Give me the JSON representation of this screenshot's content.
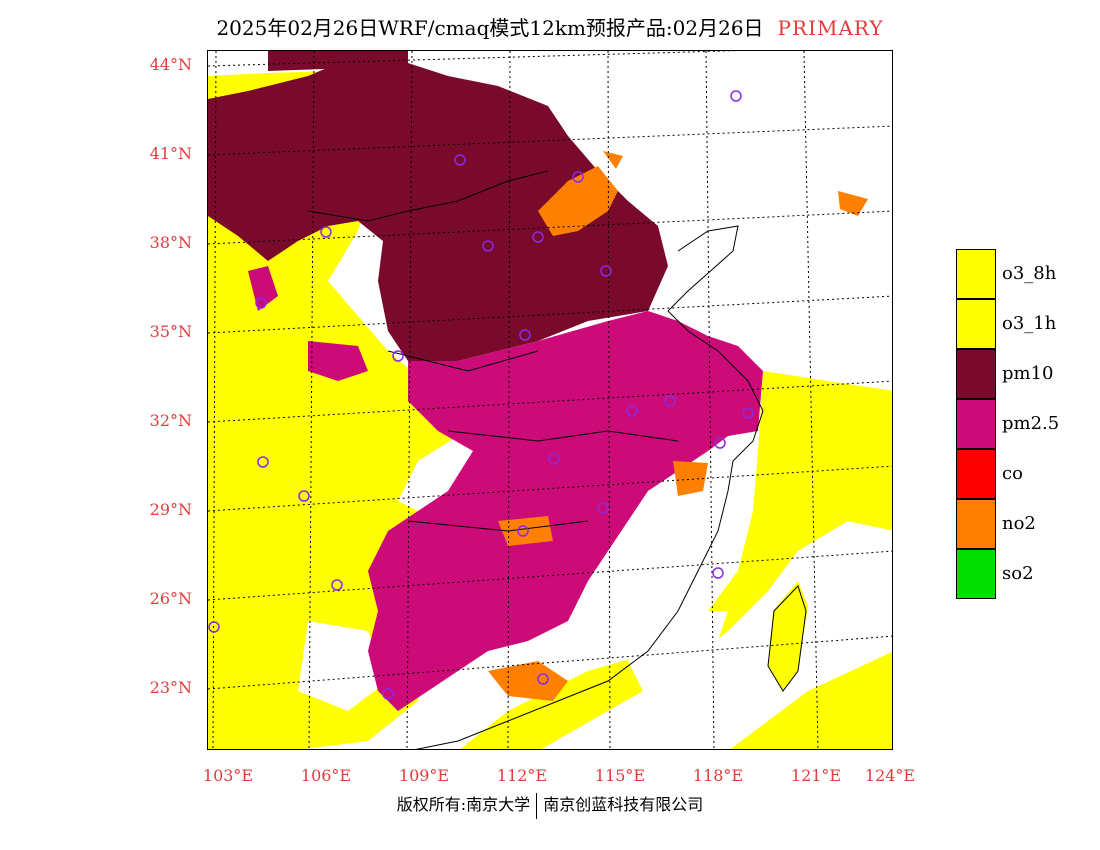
{
  "title": {
    "text": "2025年02月26日WRF/cmaq模式12km预报产品:02月26日",
    "tag": "PRIMARY"
  },
  "latitude_labels": [
    "44°N",
    "41°N",
    "38°N",
    "35°N",
    "32°N",
    "29°N",
    "26°N",
    "23°N"
  ],
  "longitude_labels": [
    "103°E",
    "106°E",
    "109°E",
    "112°E",
    "115°E",
    "118°E",
    "121°E",
    "124°E"
  ],
  "legend": [
    {
      "label": "o3_8h",
      "color": "#ffff00"
    },
    {
      "label": "o3_1h",
      "color": "#ffff00"
    },
    {
      "label": "pm10",
      "color": "#7a0a2b"
    },
    {
      "label": "pm2.5",
      "color": "#cc0a78"
    },
    {
      "label": "co",
      "color": "#ff0000"
    },
    {
      "label": "no2",
      "color": "#ff7f00"
    },
    {
      "label": "so2",
      "color": "#00dd00"
    }
  ],
  "footer": {
    "left": "版权所有:南京大学",
    "right": "南京创蓝科技有限公司"
  },
  "colors": {
    "label_red": "#e23b3b",
    "station_marker": "#8a2be2"
  }
}
